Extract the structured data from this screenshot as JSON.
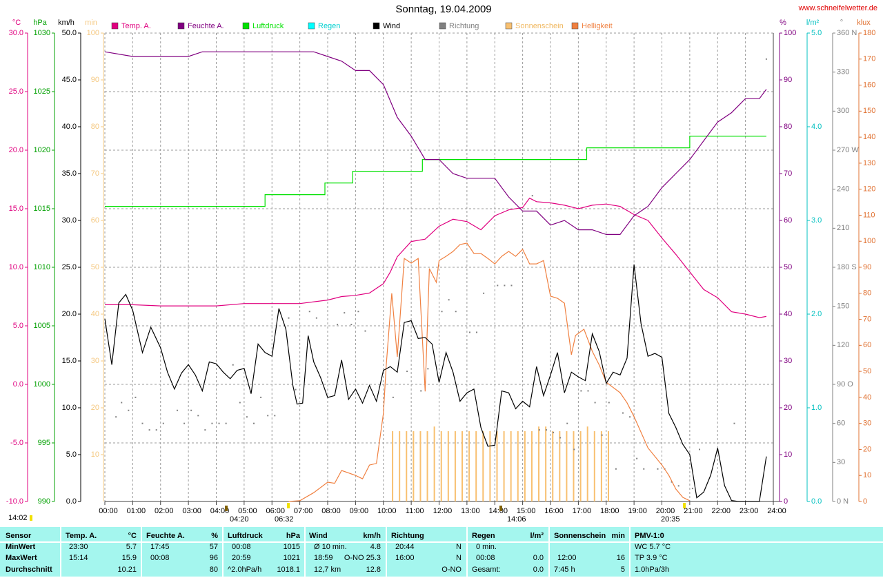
{
  "chart_data": {
    "type": "line",
    "title": "Sonntag, 19.04.2009",
    "source": "www.schneifelwetter.de",
    "grid": true,
    "xlim": [
      0,
      24
    ],
    "xticks": [
      {
        "value": 0,
        "label": "00:00"
      },
      {
        "value": 1,
        "label": "01:00"
      },
      {
        "value": 2,
        "label": "02:00"
      },
      {
        "value": 3,
        "label": "03:00"
      },
      {
        "value": 4,
        "label": "04:00"
      },
      {
        "value": 5,
        "label": "05:00"
      },
      {
        "value": 6,
        "label": "06:00"
      },
      {
        "value": 7,
        "label": "07:00"
      },
      {
        "value": 8,
        "label": "08:00"
      },
      {
        "value": 9,
        "label": "09:00"
      },
      {
        "value": 10,
        "label": "10:00"
      },
      {
        "value": 11,
        "label": "11:00"
      },
      {
        "value": 12,
        "label": "12:00"
      },
      {
        "value": 13,
        "label": "13:00"
      },
      {
        "value": 14,
        "label": "14:00"
      },
      {
        "value": 15,
        "label": "15:00"
      },
      {
        "value": 16,
        "label": "16:00"
      },
      {
        "value": 17,
        "label": "17:00"
      },
      {
        "value": 18,
        "label": "18:00"
      },
      {
        "value": 19,
        "label": "19:00"
      },
      {
        "value": 20,
        "label": "20:00"
      },
      {
        "value": 21,
        "label": "21:00"
      },
      {
        "value": 22,
        "label": "22:00"
      },
      {
        "value": 23,
        "label": "23:00"
      },
      {
        "value": 24,
        "label": "24:00"
      }
    ],
    "axes": [
      {
        "label": "°C",
        "side": "left",
        "color": "#e0007f",
        "ylim": [
          -10,
          30
        ],
        "yticks": [
          {
            "value": 30,
            "label": "30.0"
          },
          {
            "value": 25,
            "label": "25.0"
          },
          {
            "value": 20,
            "label": "20.0"
          },
          {
            "value": 15,
            "label": "15.0"
          },
          {
            "value": 10,
            "label": "10.0"
          },
          {
            "value": 5,
            "label": "5.0"
          },
          {
            "value": 0,
            "label": "0.0"
          },
          {
            "value": -5,
            "label": "-5.0"
          },
          {
            "value": -10,
            "label": "-10.0"
          }
        ]
      },
      {
        "label": "hPa",
        "side": "left",
        "color": "#00a000",
        "ylim": [
          990,
          1030
        ],
        "yticks": [
          1030,
          1025,
          1020,
          1015,
          1010,
          1005,
          1000,
          995,
          990
        ]
      },
      {
        "label": "km/h",
        "side": "left",
        "color": "#000000",
        "ylim": [
          0,
          50
        ],
        "yticks": [
          {
            "value": 50,
            "label": "50.0"
          },
          {
            "value": 45,
            "label": "45.0"
          },
          {
            "value": 40,
            "label": "40.0"
          },
          {
            "value": 35,
            "label": "35.0"
          },
          {
            "value": 30,
            "label": "30.0"
          },
          {
            "value": 25,
            "label": "25.0"
          },
          {
            "value": 20,
            "label": "20.0"
          },
          {
            "value": 15,
            "label": "15.0"
          },
          {
            "value": 10,
            "label": "10.0"
          },
          {
            "value": 5,
            "label": "5.0"
          },
          {
            "value": 0,
            "label": "0.0"
          }
        ]
      },
      {
        "label": "min",
        "side": "left",
        "color": "#f5c880",
        "ylim": [
          0,
          100
        ],
        "yticks": [
          100,
          90,
          80,
          70,
          60,
          50,
          40,
          30,
          20,
          10
        ]
      },
      {
        "label": "%",
        "side": "right",
        "color": "#800080",
        "ylim": [
          0,
          100
        ],
        "yticks": [
          100,
          90,
          80,
          70,
          60,
          50,
          40,
          30,
          20,
          10,
          0
        ]
      },
      {
        "label": "l/m²",
        "side": "right",
        "color": "#00c0c0",
        "ylim": [
          0,
          5
        ],
        "yticks": [
          {
            "value": 5,
            "label": "5.0"
          },
          {
            "value": 4,
            "label": "4.0"
          },
          {
            "value": 3,
            "label": "3.0"
          },
          {
            "value": 2,
            "label": "2.0"
          },
          {
            "value": 1,
            "label": "1.0"
          },
          {
            "value": 0,
            "label": "0.0"
          }
        ]
      },
      {
        "label": "°",
        "side": "right",
        "color": "#808080",
        "ylim": [
          0,
          360
        ],
        "yticks": [
          {
            "value": 360,
            "label": "360 N"
          },
          330,
          300,
          {
            "value": 270,
            "label": "270 W"
          },
          240,
          210,
          {
            "value": 180,
            "label": "180 S"
          },
          150,
          120,
          {
            "value": 90,
            "label": "90 O"
          },
          60,
          30,
          {
            "value": 0,
            "label": "0 N"
          }
        ]
      },
      {
        "label": "klux",
        "side": "right",
        "color": "#e07030",
        "ylim": [
          0,
          180
        ],
        "yticks": [
          180,
          170,
          160,
          150,
          140,
          130,
          120,
          110,
          100,
          90,
          80,
          70,
          60,
          50,
          40,
          30,
          20,
          10,
          0
        ]
      }
    ],
    "series": [
      {
        "name": "Temp. A.",
        "type": "line",
        "color": "#e0007f",
        "axis": 0,
        "x": [
          0,
          1,
          2,
          3,
          4,
          5,
          6,
          7,
          8,
          8.5,
          9,
          9.5,
          10,
          10.25,
          10.5,
          11,
          11.5,
          12,
          12.5,
          13,
          13.5,
          14,
          14.5,
          15,
          15.25,
          15.5,
          16,
          16.5,
          17,
          17.5,
          18,
          18.5,
          19,
          19.5,
          20,
          20.5,
          21,
          21.5,
          22,
          22.5,
          23,
          23.5,
          23.75
        ],
        "values": [
          6.8,
          6.8,
          6.7,
          6.7,
          6.7,
          6.9,
          6.9,
          6.9,
          7.2,
          7.5,
          7.6,
          7.8,
          8.6,
          9.6,
          10.9,
          12.2,
          12.4,
          13.5,
          14.1,
          13.9,
          13.2,
          14.4,
          14.9,
          15.1,
          15.9,
          15.6,
          15.5,
          15.3,
          15.0,
          15.3,
          15.4,
          15.2,
          14.5,
          14.0,
          12.5,
          11.1,
          9.6,
          8.1,
          7.4,
          6.2,
          6.0,
          5.7,
          5.8
        ]
      },
      {
        "name": "Feuchte A.",
        "type": "line",
        "color": "#800080",
        "axis": 4,
        "x": [
          0,
          1,
          2,
          3,
          3.5,
          4,
          5,
          6,
          7,
          7.5,
          8,
          8.5,
          9,
          9.5,
          10,
          10.5,
          11,
          11.5,
          12,
          12.5,
          13,
          13.5,
          14,
          14.5,
          15,
          15.5,
          16,
          16.5,
          17,
          17.5,
          18,
          18.5,
          19,
          19.5,
          20,
          20.5,
          21,
          21.5,
          22,
          22.5,
          23,
          23.5,
          23.75
        ],
        "values": [
          96,
          95,
          95,
          95,
          96,
          96,
          96,
          96,
          96,
          96,
          95,
          94,
          92,
          92,
          89,
          82,
          78,
          73,
          73,
          70,
          69,
          69,
          69,
          65,
          62,
          62,
          59,
          60,
          58,
          58,
          57,
          57,
          61,
          63,
          67,
          70,
          73,
          77,
          81,
          83,
          86,
          86,
          88
        ]
      },
      {
        "name": "Luftdruck",
        "type": "line",
        "color": "#00e000",
        "axis": 1,
        "x": [
          0,
          5.75,
          5.75,
          7.9,
          7.9,
          8.9,
          8.9,
          11.4,
          11.4,
          17.3,
          17.3,
          21,
          21,
          23.75
        ],
        "values": [
          1015.2,
          1015.2,
          1016.2,
          1016.2,
          1017.2,
          1017.2,
          1018.2,
          1018.2,
          1019.2,
          1019.2,
          1020.2,
          1020.2,
          1021.2,
          1021.2
        ]
      },
      {
        "name": "Regen",
        "type": "line",
        "color": "#00ffff",
        "axis": 5
      },
      {
        "name": "Wind",
        "type": "line",
        "color": "#000000",
        "axis": 2,
        "x": [
          0,
          0.25,
          0.5,
          0.75,
          1,
          1.35,
          1.65,
          2,
          2.25,
          2.5,
          2.75,
          3,
          3.25,
          3.5,
          3.75,
          4,
          4.25,
          4.5,
          4.75,
          5,
          5.25,
          5.5,
          5.75,
          6,
          6.25,
          6.5,
          6.75,
          6.9,
          7.1,
          7.3,
          7.5,
          7.75,
          8,
          8.25,
          8.5,
          8.75,
          9,
          9.25,
          9.5,
          9.75,
          10,
          10.25,
          10.5,
          10.75,
          11,
          11.25,
          11.5,
          11.75,
          12,
          12.25,
          12.5,
          12.75,
          13,
          13.25,
          13.5,
          13.75,
          14,
          14.25,
          14.5,
          14.75,
          15,
          15.25,
          15.5,
          15.75,
          16,
          16.25,
          16.5,
          16.75,
          17,
          17.25,
          17.5,
          17.75,
          18,
          18.25,
          18.5,
          18.75,
          19,
          19.25,
          19.5,
          19.75,
          20,
          20.25,
          20.5,
          20.75,
          21,
          21.25,
          21.5,
          21.75,
          22,
          22.25,
          22.5,
          22.75,
          23,
          23.5,
          23.75
        ],
        "values": [
          19.5,
          14.6,
          21.2,
          22.1,
          20.4,
          15.9,
          18.6,
          16.4,
          13.8,
          12.0,
          13.7,
          14.6,
          13.5,
          11.8,
          14.9,
          14.7,
          13.8,
          13.1,
          14.0,
          14.2,
          11.5,
          16.8,
          15.9,
          15.5,
          20.6,
          18.4,
          12.4,
          10.4,
          10.5,
          17.7,
          14.9,
          13.2,
          11.1,
          11.3,
          15.1,
          10.9,
          12.0,
          10.5,
          12.4,
          10.7,
          14.0,
          14.4,
          13.8,
          19.1,
          19.3,
          17.4,
          17.5,
          16.8,
          12.7,
          15.9,
          13.8,
          10.7,
          11.6,
          12.0,
          7.9,
          5.9,
          6.0,
          11.8,
          11.6,
          9.9,
          10.7,
          10.1,
          14.4,
          11.3,
          13.5,
          15.9,
          11.6,
          13.8,
          13.3,
          12.9,
          17.9,
          16.0,
          12.6,
          13.8,
          13.5,
          15.3,
          25.3,
          19.0,
          15.5,
          15.8,
          15.4,
          9.4,
          7.9,
          6.1,
          5.0,
          0.4,
          1.0,
          2.8,
          5.7,
          1.7,
          0.1,
          0,
          0,
          0,
          4.8
        ]
      },
      {
        "name": "Richtung",
        "type": "scatter",
        "color": "#808080",
        "axis": 6,
        "x": [
          0.4,
          0.6,
          0.85,
          1.1,
          1.35,
          1.6,
          1.85,
          2.1,
          2.6,
          2.85,
          3.1,
          3.35,
          3.6,
          3.85,
          4.1,
          4.35,
          4.6,
          4.85,
          5.1,
          5.35,
          5.6,
          5.85,
          6.1,
          6.6,
          6.85,
          7.35,
          7.6,
          8.35,
          8.6,
          8.85,
          9.1,
          9.35,
          10.35,
          10.85,
          11.35,
          11.6,
          12.1,
          12.35,
          12.6,
          13.1,
          13.35,
          13.6,
          14.1,
          14.35,
          14.6,
          15.35,
          15.6,
          15.85,
          16.1,
          16.35,
          16.6,
          16.85,
          17.1,
          17.35,
          17.6,
          17.85,
          18.1,
          18.35,
          18.6,
          18.85,
          19.1,
          19.35,
          19.85,
          20.1,
          20.35,
          20.6,
          21.1,
          21.35,
          22.6,
          23.75
        ],
        "values": [
          65,
          76,
          70,
          80,
          60,
          55,
          55,
          60,
          70,
          60,
          70,
          66,
          55,
          60,
          60,
          60,
          105,
          76,
          65,
          60,
          80,
          66,
          66,
          141,
          86,
          146,
          141,
          136,
          145,
          136,
          146,
          131,
          80,
          100,
          85,
          102,
          146,
          155,
          146,
          130,
          130,
          160,
          166,
          166,
          166,
          235,
          55,
          55,
          53,
          49,
          60,
          40,
          85,
          85,
          76,
          51,
          76,
          25,
          68,
          65,
          33,
          25,
          25,
          25,
          15,
          12,
          10,
          40,
          60,
          340
        ]
      },
      {
        "name": "Sonnenschein",
        "type": "bar",
        "color": "#f8c070",
        "axis": 3,
        "x": [
          10.33,
          10.58,
          10.83,
          11.08,
          11.33,
          11.58,
          11.83,
          12.08,
          12.33,
          12.58,
          12.83,
          13.08,
          13.33,
          13.58,
          13.83,
          14.08,
          14.33,
          14.58,
          14.83,
          15.08,
          15.33,
          15.58,
          15.83,
          16.08,
          16.33,
          16.58,
          16.83,
          17.08,
          17.33,
          17.58,
          17.83,
          18.08
        ],
        "values": [
          15,
          15,
          15,
          15,
          15,
          15,
          16,
          15,
          15,
          15,
          15,
          15,
          15,
          15,
          15,
          15,
          15,
          15,
          15,
          15,
          15,
          16,
          16,
          15,
          15,
          15,
          15,
          15,
          16,
          15,
          15,
          15
        ]
      },
      {
        "name": "Helligkeit",
        "type": "line",
        "color": "#f08040",
        "axis": 7,
        "x": [
          6.6,
          7,
          7.5,
          8,
          8.25,
          8.5,
          9,
          9.25,
          9.5,
          9.75,
          10,
          10.1,
          10.3,
          10.5,
          10.75,
          11,
          11.25,
          11.5,
          11.65,
          11.9,
          12,
          12.25,
          12.5,
          12.75,
          13,
          13.25,
          13.5,
          13.75,
          14,
          14.25,
          14.5,
          14.75,
          15,
          15.25,
          15.5,
          15.75,
          16,
          16.25,
          16.5,
          16.75,
          16.9,
          17.2,
          17.5,
          17.75,
          18,
          18.5,
          18.75,
          19,
          19.5,
          20,
          20.25,
          20.5,
          20.75,
          21
        ],
        "values": [
          0,
          0.3,
          3.4,
          7.4,
          7,
          11.9,
          10,
          8.7,
          14,
          14.6,
          33.9,
          52,
          80,
          55.6,
          93.4,
          91.6,
          93.4,
          42.3,
          89.5,
          84.2,
          92.6,
          94.2,
          96.1,
          98.7,
          99.3,
          95.3,
          95.3,
          93.4,
          91.3,
          94.2,
          96.1,
          94.2,
          96.9,
          91.3,
          91.3,
          92.6,
          78.9,
          78.1,
          76.2,
          56.4,
          63.8,
          66.2,
          57.7,
          52.4,
          45.8,
          41.8,
          37.9,
          32.6,
          20.6,
          14,
          10,
          4.8,
          1.6,
          0.3
        ]
      }
    ],
    "annotations": [
      "14:02",
      "04:20",
      "06:32",
      "14:06",
      "20:35"
    ]
  },
  "table": {
    "header": [
      "Sensor",
      "Temp. A.",
      "°C",
      "Feuchte A.",
      "%",
      "Luftdruck",
      "hPa",
      "Wind",
      "km/h",
      "Richtung",
      "Regen",
      "l/m²",
      "Sonnenschein",
      "min",
      "PMV-1:0"
    ],
    "rows": [
      {
        "label": "MinWert",
        "cells": [
          "23:30",
          "5.7",
          "17:45",
          "57",
          "00:08",
          "1015",
          "Ø 10 min.",
          "4.8",
          "20:44",
          "N",
          "0 min.",
          "WC 5.7 °C"
        ]
      },
      {
        "label": "MaxWert",
        "cells": [
          "15:14",
          "15.9",
          "00:08",
          "96",
          "20:59",
          "1021",
          "18:59",
          "O-NO 25.3",
          "16:00",
          "N",
          "00:08",
          "0.0",
          "12:00",
          "16",
          "TP 3.9 °C"
        ]
      },
      {
        "label": "Durchschnitt",
        "cells": [
          "10.21",
          "80",
          "^2.0hPa/h",
          "1018.1",
          "12,7 km",
          "12.8",
          "O-NO",
          "Gesamt:",
          "0.0",
          "7:45 h",
          "5",
          "1.0hPa/3h"
        ]
      }
    ]
  }
}
